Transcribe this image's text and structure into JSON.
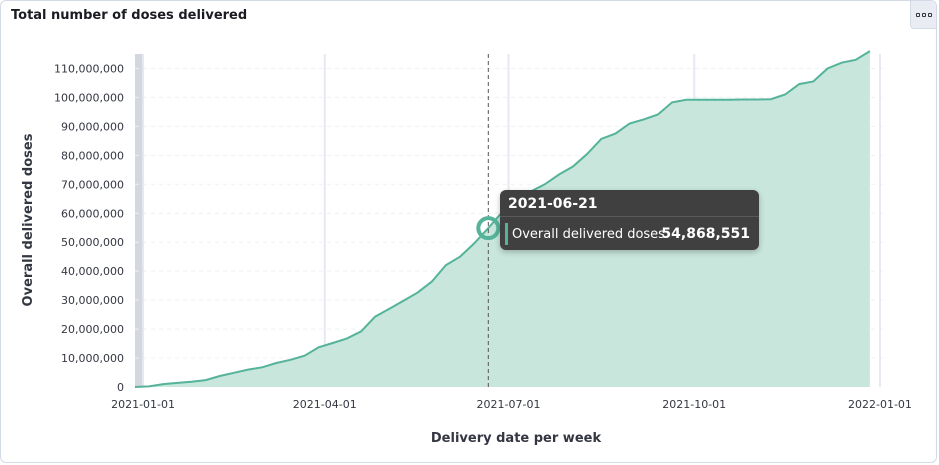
{
  "panel": {
    "title": "Total number of doses delivered",
    "options_icon": "more-options-icon"
  },
  "chart_data": {
    "type": "area",
    "xlabel": "Delivery date per week",
    "ylabel": "Overall delivered doses",
    "ylim": [
      0,
      115000000
    ],
    "yticks": [
      0,
      10000000,
      20000000,
      30000000,
      40000000,
      50000000,
      60000000,
      70000000,
      80000000,
      90000000,
      100000000,
      110000000
    ],
    "ytick_labels": [
      "0",
      "10,000,000",
      "20,000,000",
      "30,000,000",
      "40,000,000",
      "50,000,000",
      "60,000,000",
      "70,000,000",
      "80,000,000",
      "90,000,000",
      "100,000,000",
      "110,000,000"
    ],
    "xticks": [
      "2021-01-01",
      "2021-04-01",
      "2021-07-01",
      "2021-10-01",
      "2022-01-01"
    ],
    "series": [
      {
        "name": "Overall delivered doses",
        "color": "#54b399",
        "fill": "#c8e6dc",
        "points": [
          [
            "2020-12-28",
            0
          ],
          [
            "2021-01-04",
            200000
          ],
          [
            "2021-01-11",
            1000000
          ],
          [
            "2021-01-18",
            1400000
          ],
          [
            "2021-01-25",
            1800000
          ],
          [
            "2021-02-01",
            2400000
          ],
          [
            "2021-02-08",
            3800000
          ],
          [
            "2021-02-15",
            4900000
          ],
          [
            "2021-02-22",
            6000000
          ],
          [
            "2021-03-01",
            6800000
          ],
          [
            "2021-03-08",
            8300000
          ],
          [
            "2021-03-15",
            9400000
          ],
          [
            "2021-03-22",
            10800000
          ],
          [
            "2021-03-29",
            13700000
          ],
          [
            "2021-04-05",
            15200000
          ],
          [
            "2021-04-12",
            16800000
          ],
          [
            "2021-04-19",
            19200000
          ],
          [
            "2021-04-26",
            24300000
          ],
          [
            "2021-05-03",
            27000000
          ],
          [
            "2021-05-10",
            29800000
          ],
          [
            "2021-05-17",
            32600000
          ],
          [
            "2021-05-24",
            36400000
          ],
          [
            "2021-05-31",
            42100000
          ],
          [
            "2021-06-07",
            45000000
          ],
          [
            "2021-06-14",
            49600000
          ],
          [
            "2021-06-21",
            54868551
          ],
          [
            "2021-06-28",
            60500000
          ],
          [
            "2021-07-05",
            64800000
          ],
          [
            "2021-07-12",
            67500000
          ],
          [
            "2021-07-19",
            70000000
          ],
          [
            "2021-07-26",
            73400000
          ],
          [
            "2021-08-02",
            76200000
          ],
          [
            "2021-08-09",
            80500000
          ],
          [
            "2021-08-16",
            85700000
          ],
          [
            "2021-08-23",
            87500000
          ],
          [
            "2021-08-30",
            91000000
          ],
          [
            "2021-09-06",
            92400000
          ],
          [
            "2021-09-13",
            94100000
          ],
          [
            "2021-09-20",
            98300000
          ],
          [
            "2021-09-27",
            99200000
          ],
          [
            "2021-10-04",
            99200000
          ],
          [
            "2021-10-11",
            99200000
          ],
          [
            "2021-10-18",
            99200000
          ],
          [
            "2021-10-25",
            99300000
          ],
          [
            "2021-11-01",
            99300000
          ],
          [
            "2021-11-08",
            99400000
          ],
          [
            "2021-11-15",
            101000000
          ],
          [
            "2021-11-22",
            104600000
          ],
          [
            "2021-11-29",
            105500000
          ],
          [
            "2021-12-06",
            110000000
          ],
          [
            "2021-12-13",
            112000000
          ],
          [
            "2021-12-20",
            113000000
          ],
          [
            "2021-12-27",
            116000000
          ]
        ]
      }
    ],
    "hover": {
      "date": "2021-06-21",
      "series_name": "Overall delivered doses",
      "value": 54868551,
      "value_label": "54,868,551"
    }
  }
}
